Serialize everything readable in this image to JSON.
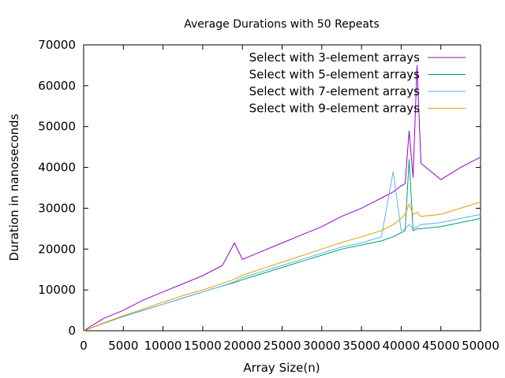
{
  "chart_data": {
    "type": "line",
    "title": "Average Durations with 50 Repeats",
    "xlabel": "Array Size(n)",
    "ylabel": "Duration in nanoseconds",
    "xlim": [
      0,
      50000
    ],
    "ylim": [
      0,
      70000
    ],
    "x_ticks": [
      0,
      5000,
      10000,
      15000,
      20000,
      25000,
      30000,
      35000,
      40000,
      45000,
      50000
    ],
    "y_ticks": [
      0,
      10000,
      20000,
      30000,
      40000,
      50000,
      60000,
      70000
    ],
    "x_tick_labels": [
      "0",
      "5000",
      "10000",
      "15000",
      "20000",
      "25000",
      "30000",
      "35000",
      "40000",
      "45000",
      "50000"
    ],
    "y_tick_labels": [
      "0",
      "10000",
      "20000",
      "30000",
      "40000",
      "50000",
      "60000",
      "70000"
    ],
    "grid": false,
    "legend_position": "top-right",
    "x": [
      0,
      2500,
      5000,
      7500,
      10000,
      12500,
      15000,
      17500,
      19000,
      20000,
      22500,
      25000,
      27500,
      30000,
      32500,
      35000,
      37500,
      39000,
      40000,
      40500,
      41000,
      41500,
      42000,
      42500,
      45000,
      47500,
      50000
    ],
    "series": [
      {
        "name": "Select with 3-element arrays",
        "color": "#9400d3",
        "values": [
          0,
          3000,
          5000,
          7500,
          9500,
          11500,
          13500,
          16000,
          21500,
          17500,
          19500,
          21500,
          23500,
          25500,
          28000,
          30000,
          32500,
          34000,
          35500,
          36000,
          49000,
          37500,
          65000,
          41000,
          37000,
          40000,
          42500
        ]
      },
      {
        "name": "Select with 5-element arrays",
        "color": "#009e73",
        "values": [
          0,
          1800,
          3500,
          5000,
          6500,
          8000,
          9500,
          11000,
          11800,
          12500,
          14000,
          15500,
          17000,
          18500,
          20000,
          21000,
          22000,
          23000,
          24000,
          24500,
          42000,
          24500,
          25000,
          25000,
          25500,
          26500,
          27500
        ]
      },
      {
        "name": "Select with 7-element arrays",
        "color": "#56b4e9",
        "values": [
          0,
          1800,
          3500,
          5000,
          6500,
          8000,
          9500,
          11000,
          12000,
          13000,
          14500,
          16000,
          17500,
          19000,
          20500,
          21500,
          23000,
          39000,
          24500,
          25000,
          26000,
          25000,
          25500,
          26000,
          26500,
          27500,
          28500
        ]
      },
      {
        "name": "Select with 9-element arrays",
        "color": "#e69f00",
        "values": [
          0,
          1900,
          3700,
          5300,
          7000,
          8600,
          10000,
          11600,
          12600,
          13600,
          15200,
          16800,
          18400,
          20000,
          21600,
          23000,
          24500,
          26000,
          27500,
          28500,
          31000,
          28500,
          29000,
          28000,
          28500,
          30000,
          31500
        ]
      }
    ]
  }
}
